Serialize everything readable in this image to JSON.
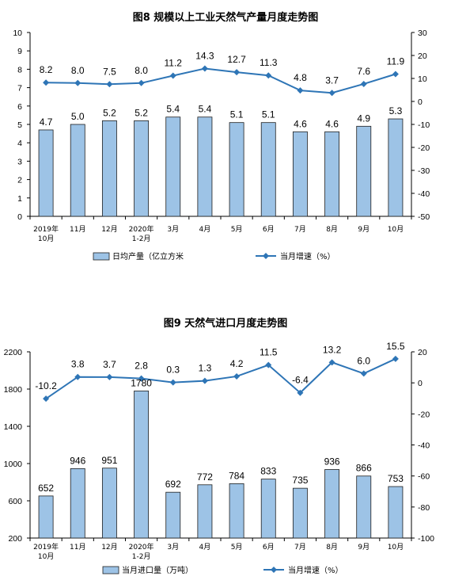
{
  "colors": {
    "bar_fill": "#9dc3e6",
    "bar_stroke": "#1f1f1f",
    "line": "#2e75b6",
    "axis": "#000000"
  },
  "chart_data": [
    {
      "type": "bar",
      "title": "图8  规模以上工业天然气产量月度走势图",
      "categories": [
        "2019年\n10月",
        "11月",
        "12月",
        "2020年\n1-2月",
        "3月",
        "4月",
        "5月",
        "6月",
        "7月",
        "8月",
        "9月",
        "10月"
      ],
      "series": [
        {
          "name": "日均产量（亿立方米",
          "type": "bar",
          "axis": "left",
          "values": [
            4.7,
            5.0,
            5.2,
            5.2,
            5.4,
            5.4,
            5.1,
            5.1,
            4.6,
            4.6,
            4.9,
            5.3
          ],
          "labels": [
            "4.7",
            "5.0",
            "5.2",
            "5.2",
            "5.4",
            "5.4",
            "5.1",
            "5.1",
            "4.6",
            "4.6",
            "4.9",
            "5.3"
          ]
        },
        {
          "name": "当月增速（%）",
          "type": "line",
          "axis": "right",
          "values": [
            8.2,
            8.0,
            7.5,
            8.0,
            11.2,
            14.3,
            12.7,
            11.3,
            4.8,
            3.7,
            7.6,
            11.9
          ],
          "labels": [
            "8.2",
            "8.0",
            "7.5",
            "8.0",
            "11.2",
            "14.3",
            "12.7",
            "11.3",
            "4.8",
            "3.7",
            "7.6",
            "11.9"
          ]
        }
      ],
      "y_left": {
        "min": 0,
        "max": 10,
        "ticks": [
          "0",
          "1",
          "2",
          "3",
          "4",
          "5",
          "6",
          "7",
          "8",
          "9",
          "10"
        ]
      },
      "y_right": {
        "min": -50,
        "max": 30,
        "ticks": [
          "-50",
          "-40",
          "-30",
          "-20",
          "-10",
          "0",
          "10",
          "20",
          "30"
        ]
      },
      "grid": false,
      "legend_position": "bottom"
    },
    {
      "type": "bar",
      "title": "图9  天然气进口月度走势图",
      "categories": [
        "2019年\n10月",
        "11月",
        "12月",
        "2020年\n1-2月",
        "3月",
        "4月",
        "5月",
        "6月",
        "7月",
        "8月",
        "9月",
        "10月"
      ],
      "series": [
        {
          "name": "当月进口量（万吨）",
          "type": "bar",
          "axis": "left",
          "values": [
            652,
            946,
            951,
            1780,
            692,
            772,
            784,
            833,
            735,
            936,
            866,
            753
          ],
          "labels": [
            "652",
            "946",
            "951",
            "1780",
            "692",
            "772",
            "784",
            "833",
            "735",
            "936",
            "866",
            "753"
          ]
        },
        {
          "name": "当月增速（%）",
          "type": "line",
          "axis": "right",
          "values": [
            -10.2,
            3.8,
            3.7,
            2.8,
            0.3,
            1.3,
            4.2,
            11.5,
            -6.4,
            13.2,
            6.0,
            15.5
          ],
          "labels": [
            "-10.2",
            "3.8",
            "3.7",
            "2.8",
            "0.3",
            "1.3",
            "4.2",
            "11.5",
            "-6.4",
            "13.2",
            "6.0",
            "15.5"
          ]
        }
      ],
      "y_left": {
        "min": 200,
        "max": 2200,
        "ticks": [
          "200",
          "600",
          "1000",
          "1400",
          "1800",
          "2200"
        ]
      },
      "y_right": {
        "min": -100,
        "max": 20,
        "ticks": [
          "-100",
          "-80",
          "-60",
          "-40",
          "-20",
          "0",
          "20"
        ]
      },
      "grid": false,
      "legend_position": "bottom"
    }
  ]
}
